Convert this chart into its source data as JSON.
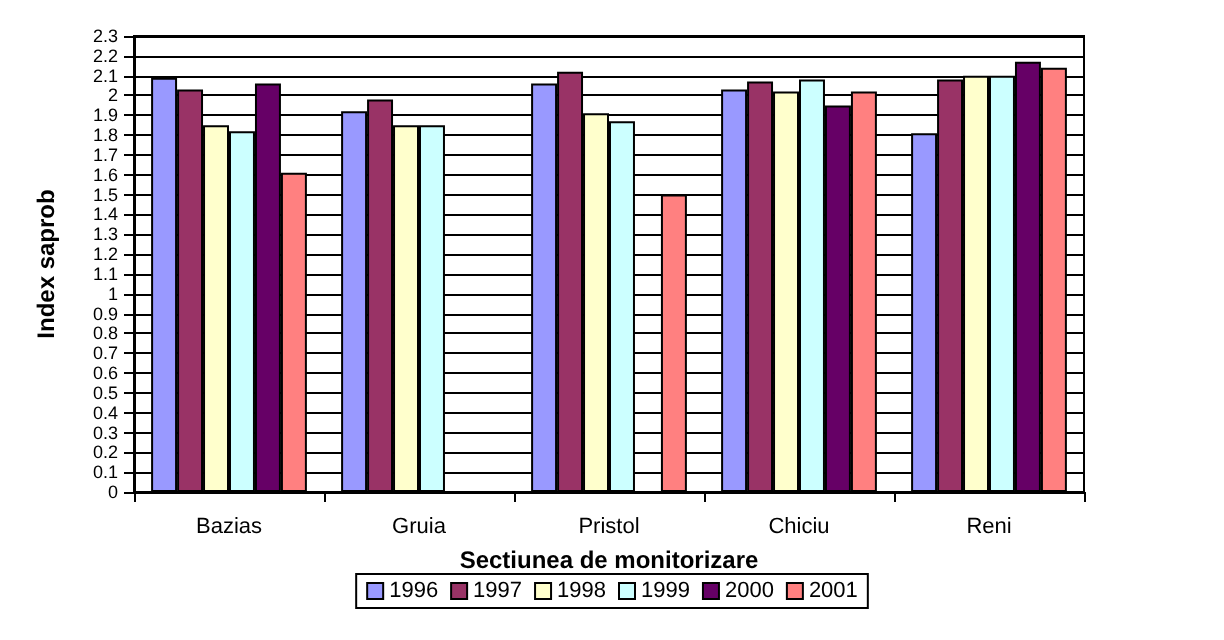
{
  "chart_data": {
    "type": "bar",
    "xlabel": "Sectiunea de monitorizare",
    "ylabel": "Index saprob",
    "categories": [
      "Bazias",
      "Gruia",
      "Pristol",
      "Chiciu",
      "Reni"
    ],
    "series": [
      {
        "name": "1996",
        "color": "#9999ff",
        "values": [
          2.09,
          1.92,
          2.06,
          2.03,
          1.81
        ]
      },
      {
        "name": "1997",
        "color": "#993366",
        "values": [
          2.03,
          1.98,
          2.12,
          2.07,
          2.08
        ]
      },
      {
        "name": "1998",
        "color": "#ffffcc",
        "values": [
          1.85,
          1.85,
          1.91,
          2.02,
          2.1
        ]
      },
      {
        "name": "1999",
        "color": "#ccffff",
        "values": [
          1.82,
          1.85,
          1.87,
          2.08,
          2.1
        ]
      },
      {
        "name": "2000",
        "color": "#660066",
        "values": [
          2.06,
          null,
          null,
          1.95,
          2.17
        ]
      },
      {
        "name": "2001",
        "color": "#ff8080",
        "values": [
          1.61,
          null,
          1.5,
          2.02,
          2.14
        ]
      }
    ],
    "ylim": [
      0,
      2.3
    ],
    "yticks": [
      0,
      0.1,
      0.2,
      0.3,
      0.4,
      0.5,
      0.6,
      0.7,
      0.8,
      0.9,
      1,
      1.1,
      1.2,
      1.3,
      1.4,
      1.5,
      1.6,
      1.7,
      1.8,
      1.9,
      2,
      2.1,
      2.2,
      2.3
    ],
    "grid": "y",
    "legend": "bottom"
  }
}
